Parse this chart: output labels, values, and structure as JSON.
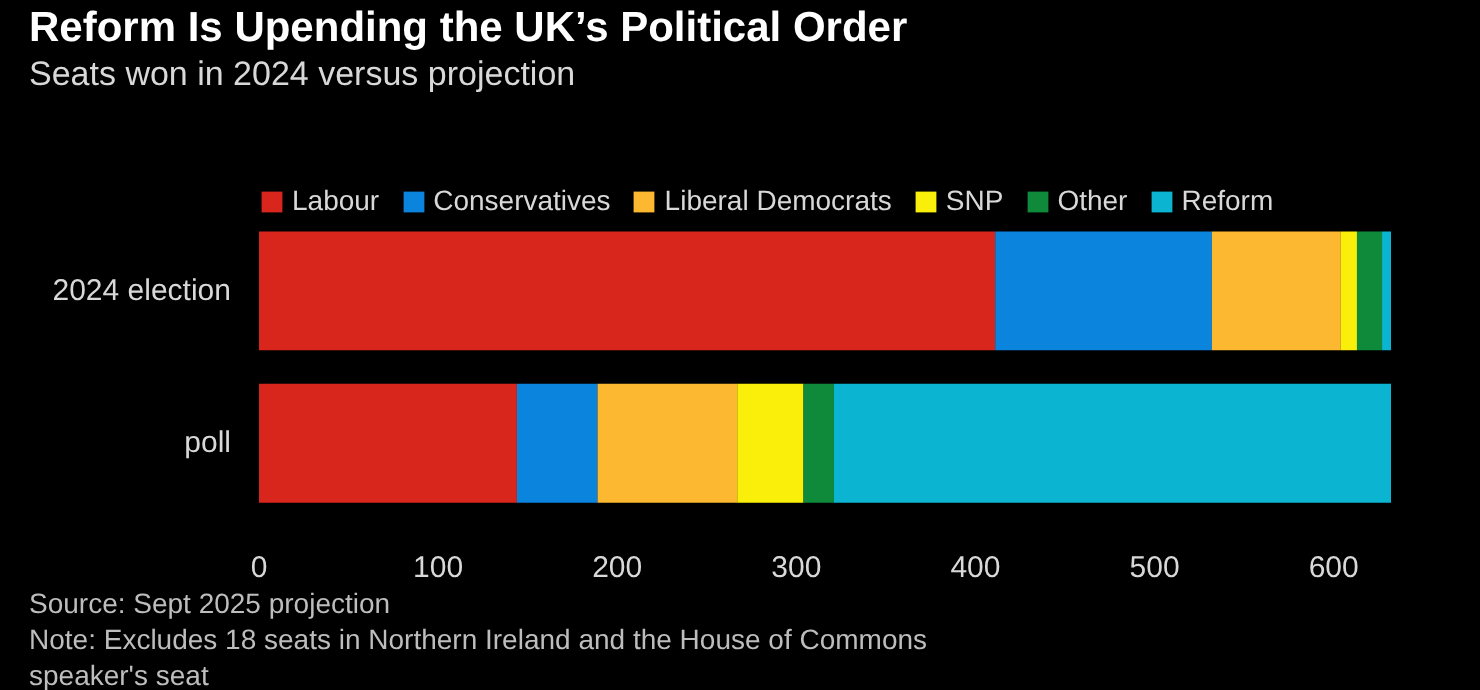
{
  "chart_data": {
    "type": "bar",
    "orientation": "horizontal",
    "stacked": true,
    "title": "Reform Is Upending the UK’s Political Order",
    "subtitle": "Seats won in 2024 versus projection",
    "categories": [
      "2024 election",
      "poll"
    ],
    "series": [
      {
        "name": "Labour",
        "color": "#d9261c",
        "values": [
          411,
          144
        ]
      },
      {
        "name": "Conservatives",
        "color": "#0a84dd",
        "values": [
          121,
          45
        ]
      },
      {
        "name": "Liberal Democrats",
        "color": "#fbb830",
        "values": [
          72,
          78
        ]
      },
      {
        "name": "SNP",
        "color": "#f9ef0b",
        "values": [
          9,
          37
        ]
      },
      {
        "name": "Other",
        "color": "#0e8a3a",
        "values": [
          14,
          17
        ]
      },
      {
        "name": "Reform",
        "color": "#0bb4d0",
        "values": [
          5,
          311
        ]
      }
    ],
    "xlim": [
      0,
      632
    ],
    "xticks": [
      0,
      100,
      200,
      300,
      400,
      500,
      600
    ],
    "grid": false,
    "legend": "top left",
    "annotations": [
      "Source: Sept 2025 projection",
      "Note: Excludes 18 seats in Northern Ireland and the House of Commons",
      "speaker's seat"
    ]
  }
}
